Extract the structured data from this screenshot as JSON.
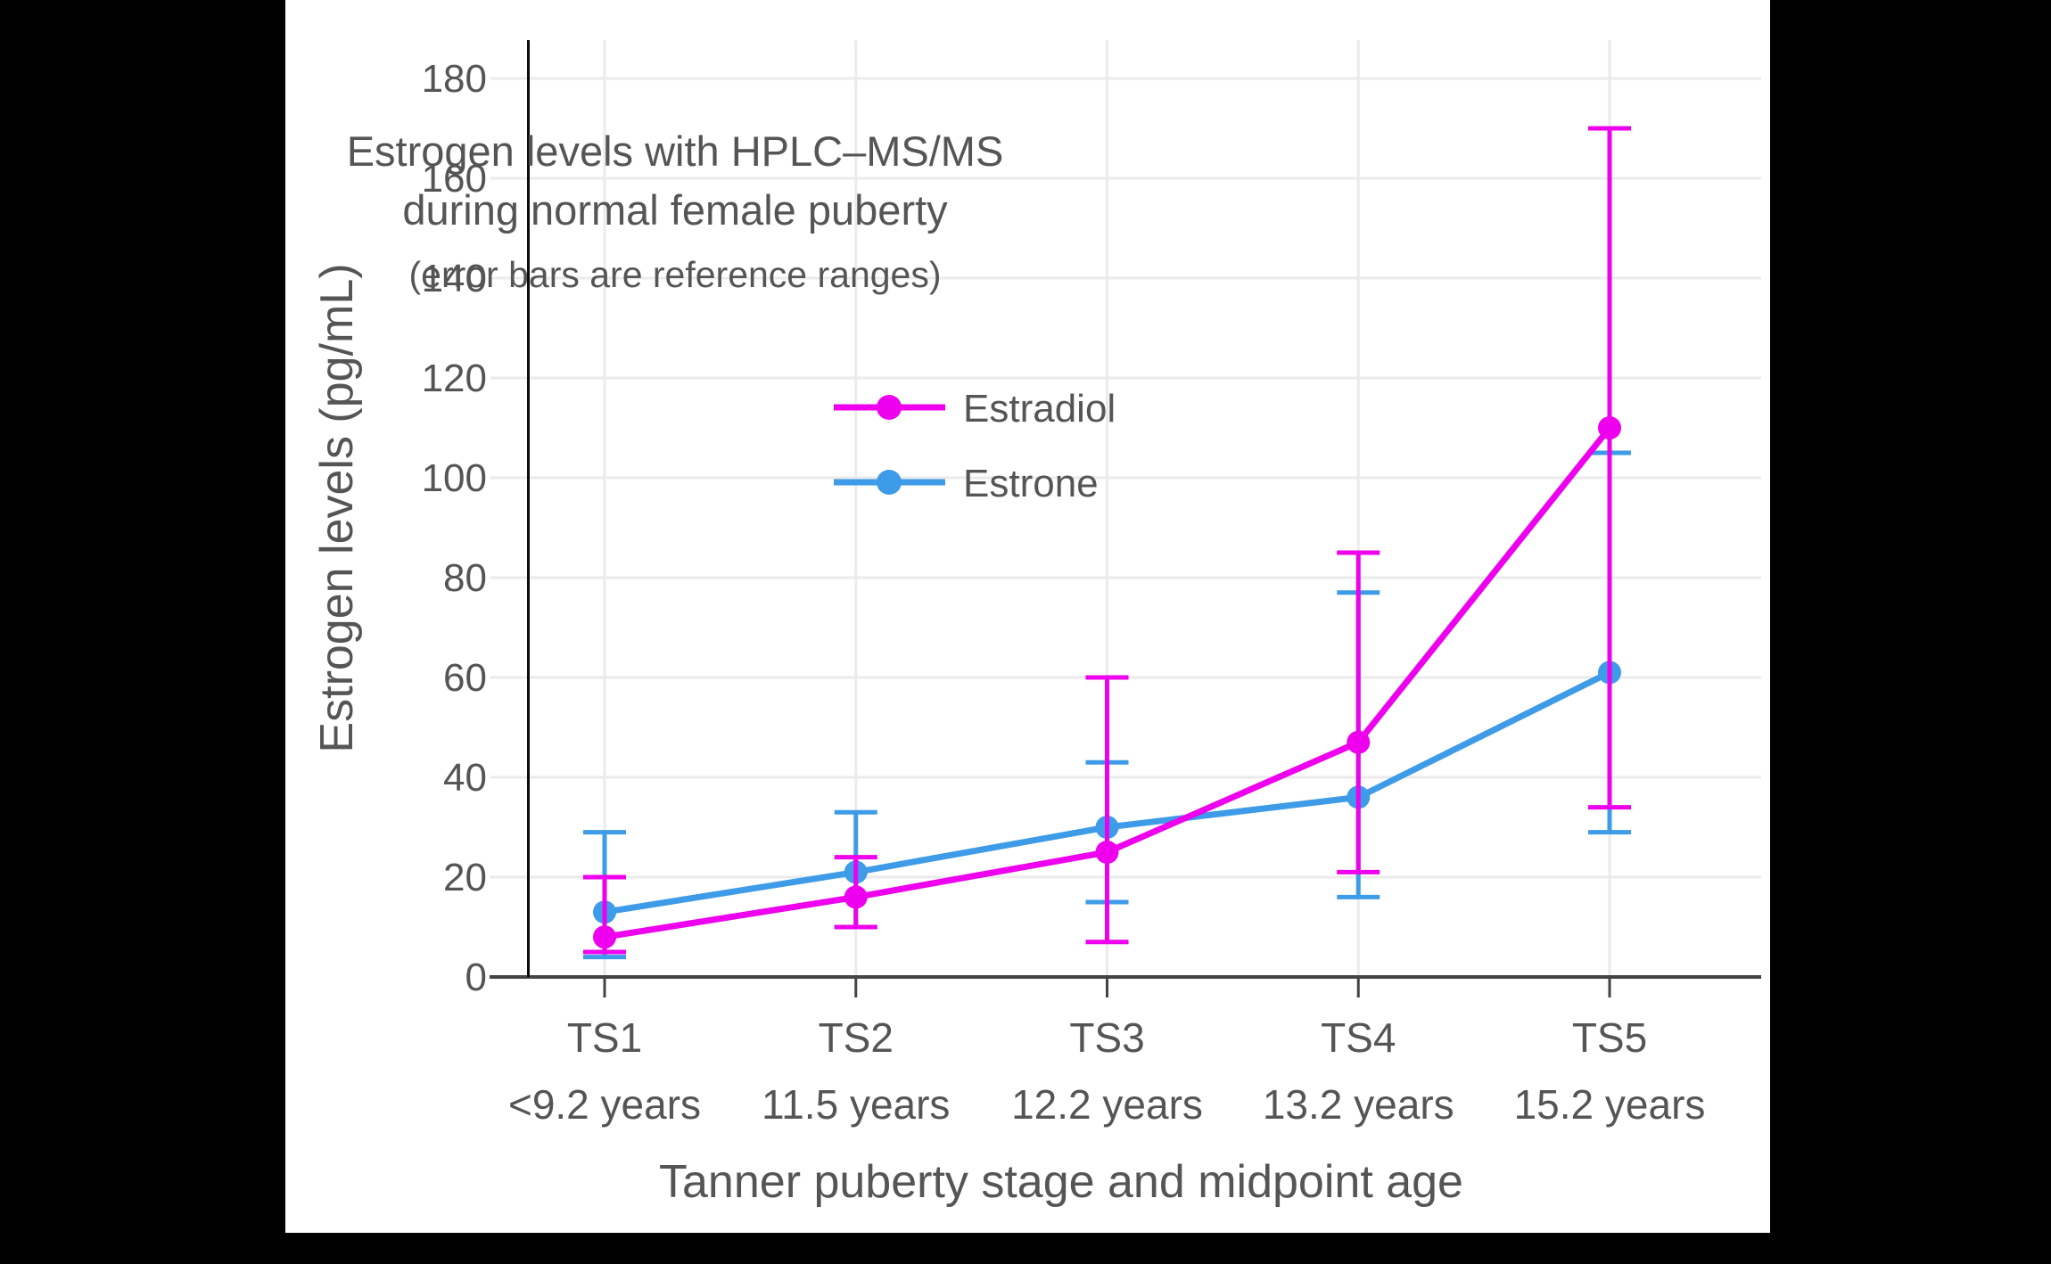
{
  "colors": {
    "background": "#000000",
    "panel": "#ffffff",
    "text": "#555555",
    "gridline": "#EBEBEB",
    "axis_dark": "#444444",
    "axis_black": "#0a0a0a",
    "estradiol": "#EE00EE",
    "estrone": "#3D9BE8"
  },
  "title": {
    "line1": "Estrogen levels with HPLC–MS/MS",
    "line2": "during normal female puberty",
    "subtitle": "(error bars are reference ranges)"
  },
  "chart_data": {
    "type": "line",
    "title": "Estrogen levels with HPLC–MS/MS during normal female puberty",
    "subtitle": "(error bars are reference ranges)",
    "xlabel": "Tanner puberty stage and midpoint age",
    "ylabel": "Estrogen levels (pg/mL)",
    "categories": [
      "TS1",
      "TS2",
      "TS3",
      "TS4",
      "TS5"
    ],
    "category_sublabels": [
      "<9.2 years",
      "11.5 years",
      "12.2 years",
      "13.2 years",
      "15.2 years"
    ],
    "yticks": [
      0,
      20,
      40,
      60,
      80,
      100,
      120,
      140,
      160,
      180
    ],
    "ylim": [
      0,
      188
    ],
    "grid": true,
    "legend_position": "inside-upper-left",
    "error_bars": "reference ranges",
    "series": [
      {
        "name": "Estrone",
        "color": "#3D9BE8",
        "values": [
          13,
          21,
          30,
          36,
          61
        ],
        "range_low": [
          4,
          10,
          15,
          16,
          29
        ],
        "range_high": [
          29,
          33,
          43,
          77,
          105
        ]
      },
      {
        "name": "Estradiol",
        "color": "#EE00EE",
        "values": [
          8,
          16,
          25,
          47,
          110
        ],
        "range_low": [
          5,
          10,
          7,
          21,
          34
        ],
        "range_high": [
          20,
          24,
          60,
          85,
          170
        ]
      }
    ],
    "legend_order": [
      "Estradiol",
      "Estrone"
    ]
  }
}
